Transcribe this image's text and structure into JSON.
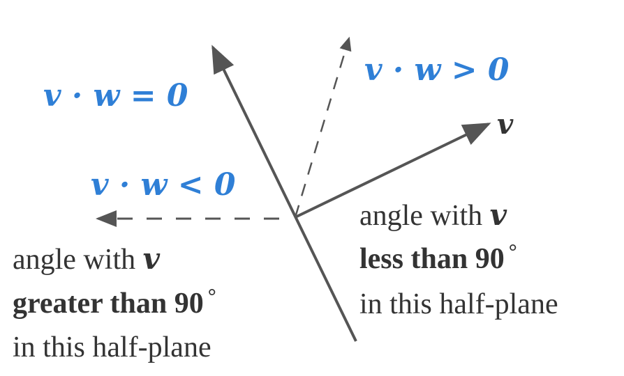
{
  "labels": {
    "dot_zero": "v · w = 0",
    "dot_positive": "v · w > 0",
    "dot_negative": "v · w < 0",
    "vector_v": "v"
  },
  "right_caption": {
    "line1_text": "angle with ",
    "line1_var": "v",
    "line2_bold": "less than 90",
    "line2_degree": "°",
    "line3": "in this half-plane"
  },
  "left_caption": {
    "line1_text": "angle with ",
    "line1_var": "v",
    "line2_bold": "greater than 90",
    "line2_degree": "°",
    "line3": "in this half-plane"
  },
  "colors": {
    "math_blue": "#2f7fd6",
    "line_gray": "#555555",
    "text_dark": "#333333"
  }
}
